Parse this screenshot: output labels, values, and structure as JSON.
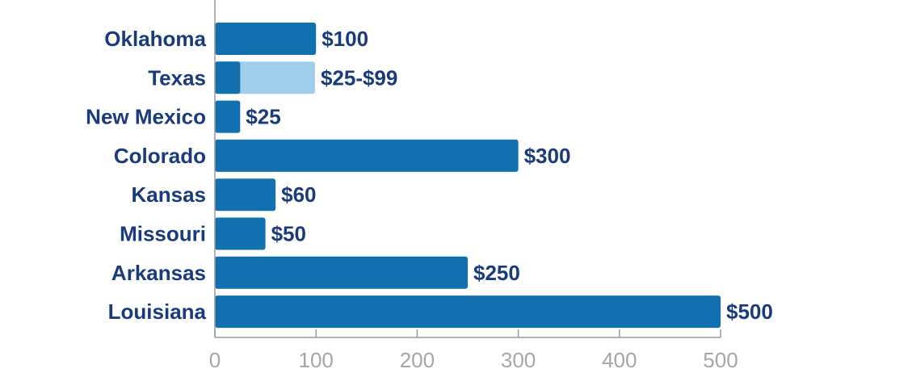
{
  "chart_data": {
    "type": "bar",
    "orientation": "horizontal",
    "title": "",
    "xlabel": "",
    "ylabel": "",
    "categories": [
      "Oklahoma",
      "Texas",
      "New Mexico",
      "Colorado",
      "Kansas",
      "Missouri",
      "Arkansas",
      "Louisiana"
    ],
    "values": [
      100,
      25,
      25,
      300,
      60,
      50,
      250,
      500
    ],
    "range_high": [
      null,
      99,
      null,
      null,
      null,
      null,
      null,
      null
    ],
    "value_labels": [
      "$100",
      "$25-$99",
      "$25",
      "$300",
      "$60",
      "$50",
      "$250",
      "$500"
    ],
    "xlim": [
      0,
      500
    ],
    "xticks": [
      0,
      100,
      200,
      300,
      400,
      500
    ],
    "xtick_labels": [
      "0",
      "100",
      "200",
      "300",
      "400",
      "500"
    ],
    "grid": false,
    "legend": "none",
    "colors": {
      "bar": "#1170ad",
      "range_bar": "#9fcdea",
      "category_text": "#1a3a7a",
      "value_text": "#1a3a7a",
      "tick_text": "#a6a6a6",
      "axis": "#9a9a9a"
    }
  }
}
